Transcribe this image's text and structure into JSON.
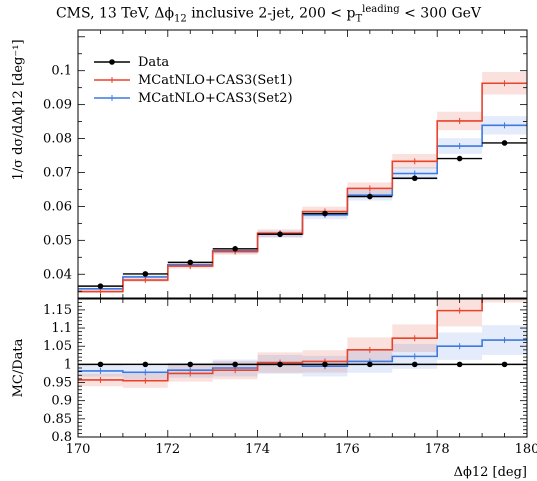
{
  "chart_data": [
    {
      "type": "step",
      "title": "CMS, 13 TeV, Δϕ12 inclusive 2-jet, 200 < p_T^leading < 300 GeV",
      "title_parts": {
        "main": "CMS, 13 TeV, Δϕ",
        "sub1": "12",
        "mid": " inclusive 2-jet, 200 < p",
        "sub2": "T",
        "sup2": "leading",
        "end": " < 300 GeV"
      },
      "ylabel": "1/σ dσ/dΔϕ12 [deg⁻¹]",
      "ylabel_parts": {
        "frac1": "1",
        "frac2": "σ",
        "frac3": "dσ",
        "frac4": "dΔϕ",
        "sub": "12",
        "unit": "[deg⁻¹]"
      },
      "xlim": [
        170,
        180
      ],
      "ylim": [
        0.033,
        0.112
      ],
      "yticks": [
        0.04,
        0.05,
        0.06,
        0.07,
        0.08,
        0.09,
        0.1
      ],
      "yticklabels": [
        "0.04",
        "0.05",
        "0.06",
        "0.07",
        "0.08",
        "0.09",
        "0.1"
      ],
      "bin_edges": [
        170,
        171,
        172,
        173,
        174,
        175,
        176,
        177,
        178,
        179,
        180
      ],
      "legend_position": "top-left",
      "series": [
        {
          "name": "Data",
          "color": "#000000",
          "style": "points",
          "values": [
            0.0365,
            0.0401,
            0.0435,
            0.0475,
            0.0518,
            0.0579,
            0.0629,
            0.0683,
            0.0741,
            0.0787
          ]
        },
        {
          "name": "MCatNLO+CAS3(Set1)",
          "color": "#e8432b",
          "style": "step",
          "values": [
            0.0349,
            0.0383,
            0.0424,
            0.0467,
            0.0521,
            0.0585,
            0.0653,
            0.0733,
            0.0852,
            0.0963
          ]
        },
        {
          "name": "MCatNLO+CAS3(Set2)",
          "color": "#3d79e0",
          "style": "step",
          "values": [
            0.0357,
            0.0392,
            0.0428,
            0.0469,
            0.0518,
            0.0575,
            0.0633,
            0.0697,
            0.0778,
            0.0839
          ]
        }
      ]
    },
    {
      "type": "step",
      "ylabel": "MC/Data",
      "xlabel": "Δϕ12 [deg]",
      "xlabel_parts": {
        "main": "Δϕ",
        "sub": "12",
        "unit": " [deg]"
      },
      "xlim": [
        170,
        180
      ],
      "ylim": [
        0.8,
        1.18
      ],
      "xticks": [
        170,
        172,
        174,
        176,
        178,
        180
      ],
      "xticklabels": [
        "170",
        "172",
        "174",
        "176",
        "178",
        "180"
      ],
      "yticks": [
        0.8,
        0.85,
        0.9,
        0.95,
        1.0,
        1.05,
        1.1,
        1.15
      ],
      "yticklabels": [
        "0.8",
        "0.85",
        "0.9",
        "0.95",
        "1",
        "1.05",
        "1.1",
        "1.15"
      ],
      "bin_edges": [
        170,
        171,
        172,
        173,
        174,
        175,
        176,
        177,
        178,
        179,
        180
      ],
      "series": [
        {
          "name": "Data",
          "color": "#000000",
          "style": "points",
          "values": [
            1.0,
            1.0,
            1.0,
            1.0,
            1.0,
            1.0,
            1.0,
            1.0,
            1.0,
            1.0
          ]
        },
        {
          "name": "MCatNLO+CAS3(Set1)",
          "color": "#e8432b",
          "style": "step",
          "values": [
            0.957,
            0.955,
            0.975,
            0.984,
            1.005,
            1.008,
            1.04,
            1.072,
            1.148,
            1.22
          ]
        },
        {
          "name": "MCatNLO+CAS3(Set2)",
          "color": "#3d79e0",
          "style": "step",
          "values": [
            0.982,
            0.978,
            0.984,
            0.99,
            1.0,
            0.995,
            1.008,
            1.022,
            1.05,
            1.067
          ]
        }
      ]
    }
  ]
}
